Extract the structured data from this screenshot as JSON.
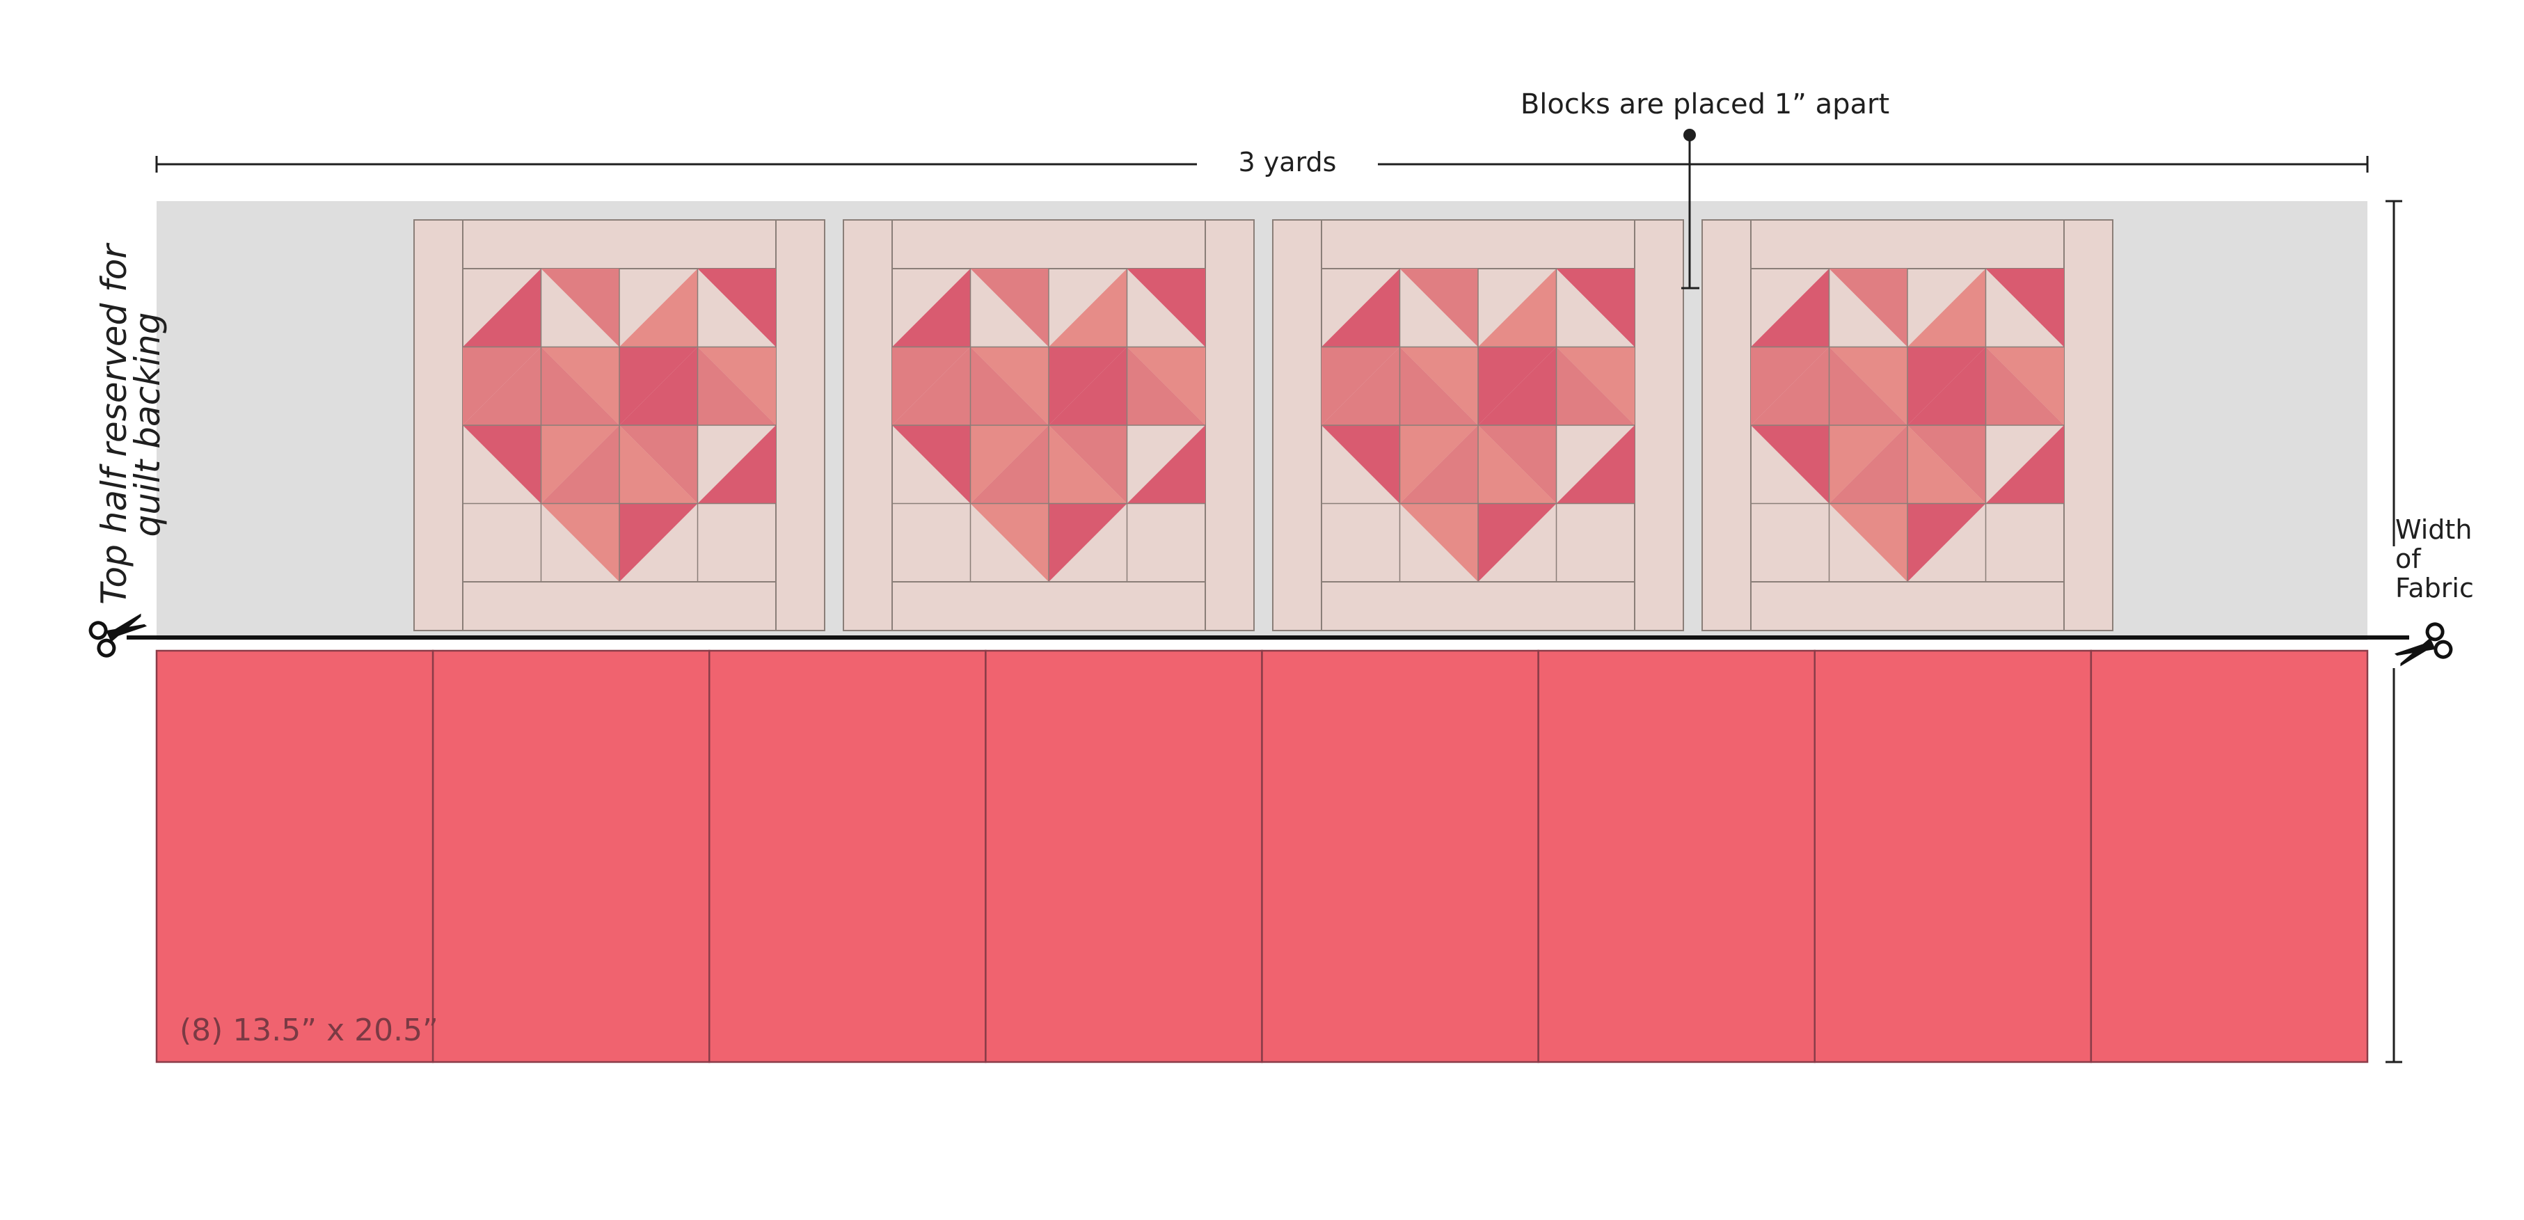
{
  "labels": {
    "fabric_length": "3 yards",
    "block_spacing": "Blocks are placed 1” apart",
    "width_of_fabric": [
      "Width",
      "of",
      "Fabric"
    ],
    "reserved": [
      "Top half reserved for",
      "quilt backing"
    ],
    "cut_size": "(8) 13.5” x 20.5”"
  },
  "blocks": {
    "count": 4
  },
  "panels": {
    "count": 8
  },
  "icons": [
    "scissors-icon",
    "scissors-icon"
  ],
  "colors": {
    "reserved_area": "#dedede",
    "block_background": "#e8d4cf",
    "grid_line": "#8a7e78",
    "heart_dark": "#d95b70",
    "heart_mid": "#e07e82",
    "heart_light": "#e68c88",
    "panel_fill": "#f0636f",
    "panel_border": "#8a3c48",
    "dimension_line": "#1f1f1f"
  }
}
